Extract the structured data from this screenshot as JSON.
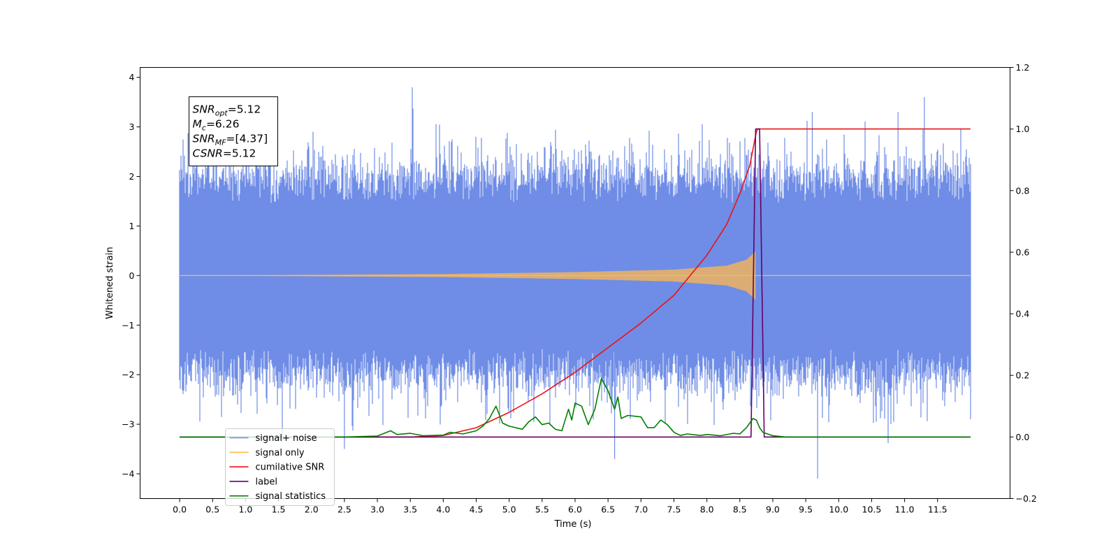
{
  "chart_data": {
    "type": "line",
    "xlabel": "Time (s)",
    "ylabel": "Whitened strain",
    "xlim": [
      -0.6,
      12.6
    ],
    "ylim": [
      -4.5,
      4.2
    ],
    "y2lim": [
      -0.2,
      1.2
    ],
    "x_ticks": [
      0.0,
      0.5,
      1.0,
      1.5,
      2.0,
      2.5,
      3.0,
      3.5,
      4.0,
      4.5,
      5.0,
      5.5,
      6.0,
      6.5,
      7.0,
      7.5,
      8.0,
      8.5,
      9.0,
      9.5,
      10.0,
      10.5,
      11.0,
      11.5
    ],
    "x_tick_labels": [
      "0.0",
      "0.5",
      "1.0",
      "1.5",
      "2.0",
      "2.5",
      "3.0",
      "3.5",
      "4.0",
      "4.5",
      "5.0",
      "5.5",
      "6.0",
      "6.5",
      "7.0",
      "7.5",
      "8.0",
      "8.5",
      "9.0",
      "9.5",
      "10.0",
      "10.5",
      "11.0",
      "11.5"
    ],
    "y_ticks": [
      -4,
      -3,
      -2,
      -1,
      0,
      1,
      2,
      3,
      4
    ],
    "y_tick_labels": [
      "−4",
      "−3",
      "−2",
      "−1",
      "0",
      "1",
      "2",
      "3",
      "4"
    ],
    "y2_ticks": [
      -0.2,
      0.0,
      0.2,
      0.4,
      0.6,
      0.8,
      1.0,
      1.2
    ],
    "y2_tick_labels": [
      "−0.2",
      "0.0",
      "0.2",
      "0.4",
      "0.6",
      "0.8",
      "1.0",
      "1.2"
    ],
    "grid": false,
    "legend_position": "lower-left",
    "annotation": {
      "lines": [
        {
          "sym": "SNR",
          "sub": "opt",
          "value": "=5.12"
        },
        {
          "sym": "M",
          "sub": "c",
          "value": "=6.26"
        },
        {
          "sym": "SNR",
          "sub": "MF",
          "value": "=[4.37]"
        },
        {
          "sym": "CSNR",
          "sub": "",
          "value": "=5.12"
        }
      ]
    },
    "series": [
      {
        "name": "signal+ noise",
        "axis": "left",
        "color": "#6f8de6",
        "noise": {
          "x_start": 0.0,
          "x_end": 12.0,
          "typical_amplitude": 1.7,
          "peak_min": -4.1,
          "peak_max": 3.8
        }
      },
      {
        "name": "signal only",
        "axis": "left",
        "color": "#ffb84d",
        "chirp": {
          "x_start": 0.0,
          "x_end": 8.75,
          "amplitude_envelope": [
            [
              0.0,
              0.0
            ],
            [
              4.0,
              0.03
            ],
            [
              6.0,
              0.07
            ],
            [
              7.5,
              0.12
            ],
            [
              8.3,
              0.2
            ],
            [
              8.6,
              0.32
            ],
            [
              8.75,
              0.5
            ]
          ],
          "zero_after": 8.75
        }
      },
      {
        "name": "cumilative SNR",
        "axis": "right",
        "color": "#ee1111",
        "x": [
          0.0,
          3.0,
          3.5,
          4.0,
          4.5,
          5.0,
          5.5,
          6.0,
          6.5,
          7.0,
          7.5,
          8.0,
          8.3,
          8.5,
          8.65,
          8.75,
          8.77,
          12.0
        ],
        "values": [
          0.0,
          0.0,
          0.0,
          0.005,
          0.03,
          0.08,
          0.14,
          0.21,
          0.29,
          0.37,
          0.46,
          0.59,
          0.69,
          0.79,
          0.88,
          0.99,
          1.0,
          1.0
        ]
      },
      {
        "name": "label",
        "axis": "right",
        "color": "#660066",
        "x": [
          0.0,
          8.67,
          8.74,
          8.8,
          8.87,
          12.0
        ],
        "values": [
          0.0,
          0.0,
          1.0,
          1.0,
          0.0,
          0.0
        ]
      },
      {
        "name": "signal statistics",
        "axis": "right",
        "color": "#008000",
        "x": [
          0.0,
          1.0,
          2.0,
          2.5,
          3.0,
          3.2,
          3.3,
          3.5,
          3.7,
          4.0,
          4.1,
          4.3,
          4.5,
          4.6,
          4.7,
          4.8,
          4.9,
          5.0,
          5.2,
          5.3,
          5.4,
          5.5,
          5.6,
          5.7,
          5.8,
          5.9,
          5.95,
          6.0,
          6.1,
          6.2,
          6.3,
          6.4,
          6.5,
          6.6,
          6.65,
          6.7,
          6.8,
          7.0,
          7.1,
          7.2,
          7.3,
          7.4,
          7.5,
          7.6,
          7.7,
          7.9,
          8.0,
          8.2,
          8.4,
          8.5,
          8.6,
          8.7,
          8.75,
          8.8,
          8.85,
          9.0,
          9.2,
          10.0,
          11.0,
          12.0
        ],
        "values": [
          0.0,
          0.0,
          0.0,
          0.0,
          0.003,
          0.02,
          0.008,
          0.012,
          0.004,
          0.006,
          0.015,
          0.01,
          0.02,
          0.035,
          0.06,
          0.1,
          0.045,
          0.035,
          0.025,
          0.05,
          0.065,
          0.04,
          0.045,
          0.025,
          0.02,
          0.09,
          0.055,
          0.11,
          0.1,
          0.04,
          0.09,
          0.19,
          0.15,
          0.09,
          0.13,
          0.06,
          0.07,
          0.065,
          0.03,
          0.03,
          0.055,
          0.04,
          0.015,
          0.005,
          0.01,
          0.005,
          0.008,
          0.004,
          0.012,
          0.01,
          0.03,
          0.06,
          0.055,
          0.03,
          0.015,
          0.004,
          0.0,
          0.0,
          0.0,
          0.0
        ]
      }
    ],
    "legend": [
      {
        "label": "signal+ noise",
        "color": "#6f8de6"
      },
      {
        "label": "signal only",
        "color": "#ffb84d"
      },
      {
        "label": "cumilative SNR",
        "color": "#ee1111"
      },
      {
        "label": "label",
        "color": "#660066"
      },
      {
        "label": "signal statistics",
        "color": "#008000"
      }
    ]
  }
}
